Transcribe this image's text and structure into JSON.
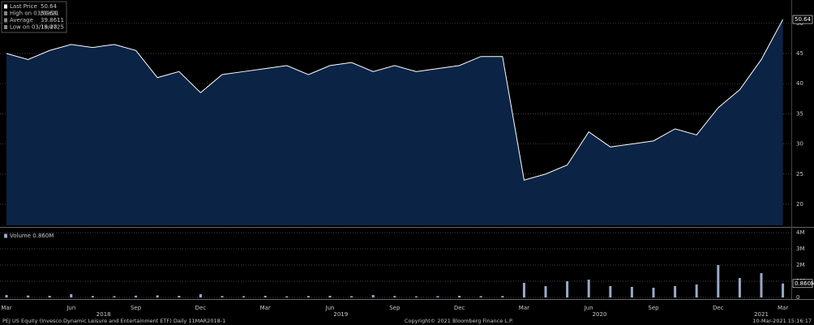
{
  "chart_data": [
    {
      "type": "area",
      "color": "#0b2446",
      "line_color": "#ffffff",
      "legend_items": [
        {
          "label": "Last Price",
          "value": 50.64
        },
        {
          "label": "High on 03/09/21",
          "value": 50.64
        },
        {
          "label": "Average",
          "value": 39.8611
        },
        {
          "label": "Low on 03/18/20",
          "value": 19.4725
        }
      ],
      "values": [
        45,
        44,
        45.5,
        46.5,
        46,
        46.5,
        45.5,
        41,
        42,
        38.5,
        41.5,
        42,
        42.5,
        43,
        41.5,
        43,
        43.5,
        42,
        43,
        42,
        42.5,
        43,
        44.5,
        44.5,
        24,
        25,
        26.5,
        32,
        29.5,
        30,
        30.5,
        32.5,
        31.5,
        36,
        39,
        44,
        50.64
      ],
      "ylim": [
        16.5,
        53.2
      ],
      "yticks": [
        20,
        25,
        30,
        35,
        40,
        45,
        50
      ],
      "grid": true
    },
    {
      "type": "bar",
      "color": "#9aa9c8",
      "legend": "Volume 0.860M",
      "last_label": "0.860M",
      "categories": [
        "Mar",
        null,
        null,
        "Jun",
        null,
        null,
        "Sep",
        null,
        null,
        "Dec",
        null,
        null,
        "Mar",
        null,
        null,
        "Jun",
        null,
        null,
        "Sep",
        null,
        null,
        "Dec",
        null,
        null,
        "Mar",
        null,
        null,
        "Jun",
        null,
        null,
        "Sep",
        null,
        null,
        "Dec",
        null,
        null,
        "Mar"
      ],
      "year_labels": [
        "2018",
        "2019",
        "2020",
        "2021"
      ],
      "values": [
        150000,
        120000,
        100000,
        200000,
        90000,
        80000,
        110000,
        130000,
        100000,
        200000,
        90000,
        80000,
        100000,
        70000,
        90000,
        100000,
        80000,
        150000,
        90000,
        70000,
        80000,
        100000,
        80000,
        90000,
        900000,
        700000,
        1000000,
        1100000,
        700000,
        650000,
        600000,
        700000,
        800000,
        2000000,
        1200000,
        1500000,
        860000
      ],
      "ylim": [
        0,
        4100000
      ],
      "yticks": [
        {
          "value": 0,
          "label": "0"
        },
        {
          "value": 1000000,
          "label": "1M"
        },
        {
          "value": 2000000,
          "label": "2M"
        },
        {
          "value": 3000000,
          "label": "3M"
        },
        {
          "value": 4000000,
          "label": "4M"
        }
      ],
      "grid": true
    }
  ],
  "footer": {
    "left": "PEJ US Equity (Invesco Dynamic Leisure and Entertainment ETF)  Daily 11MAR2018-1",
    "center": "Copyright© 2021 Bloomberg Finance L.P.",
    "right": "10-Mar-2021 15:16:17"
  }
}
